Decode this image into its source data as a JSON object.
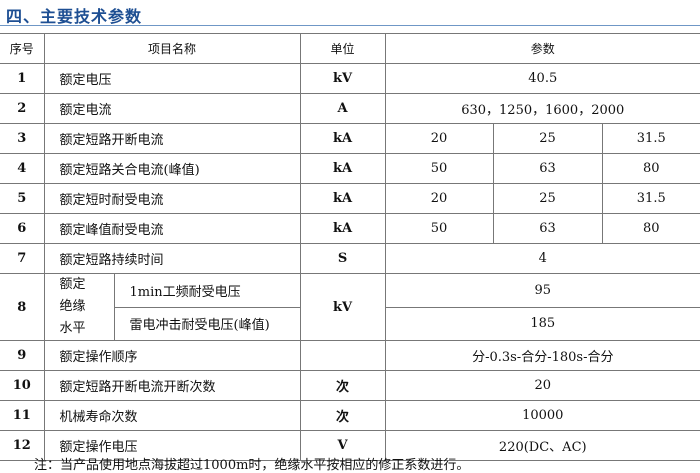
{
  "title": "四、主要技术参数",
  "header": {
    "no": "序号",
    "item": "项目名称",
    "unit": "单位",
    "params": "参数"
  },
  "rows": [
    {
      "no": "1",
      "item": "额定电压",
      "unit": "kV",
      "values": [
        "40.5"
      ]
    },
    {
      "no": "2",
      "item": "额定电流",
      "unit": "A",
      "values": [
        "630，1250，1600，2000"
      ]
    },
    {
      "no": "3",
      "item": "额定短路开断电流",
      "unit": "kA",
      "values": [
        "20",
        "25",
        "31.5"
      ]
    },
    {
      "no": "4",
      "item": "额定短路关合电流(峰值)",
      "unit": "kA",
      "values": [
        "50",
        "63",
        "80"
      ]
    },
    {
      "no": "5",
      "item": "额定短时耐受电流",
      "unit": "kA",
      "values": [
        "20",
        "25",
        "31.5"
      ]
    },
    {
      "no": "6",
      "item": "额定峰值耐受电流",
      "unit": "kA",
      "values": [
        "50",
        "63",
        "80"
      ]
    },
    {
      "no": "7",
      "item": "额定短路持续时间",
      "unit": "S",
      "values": [
        "4"
      ]
    },
    {
      "no": "8",
      "item": "额定绝缘水平",
      "unit": "kV",
      "sub": [
        {
          "item": "1min工频耐受电压",
          "value": "95"
        },
        {
          "item": "雷电冲击耐受电压(峰值)",
          "value": "185"
        }
      ]
    },
    {
      "no": "9",
      "item": "额定操作顺序",
      "unit": "",
      "values": [
        "分-0.3s-合分-180s-合分"
      ]
    },
    {
      "no": "10",
      "item": "额定短路开断电流开断次数",
      "unit": "次",
      "values": [
        "20"
      ]
    },
    {
      "no": "11",
      "item": "机械寿命次数",
      "unit": "次",
      "values": [
        "10000"
      ]
    },
    {
      "no": "12",
      "item": "额定操作电压",
      "unit": "V",
      "values": [
        "220(DC、AC)"
      ]
    }
  ],
  "note": "注：当产品使用地点海拔超过1000m时，绝缘水平按相应的修正系数进行。"
}
